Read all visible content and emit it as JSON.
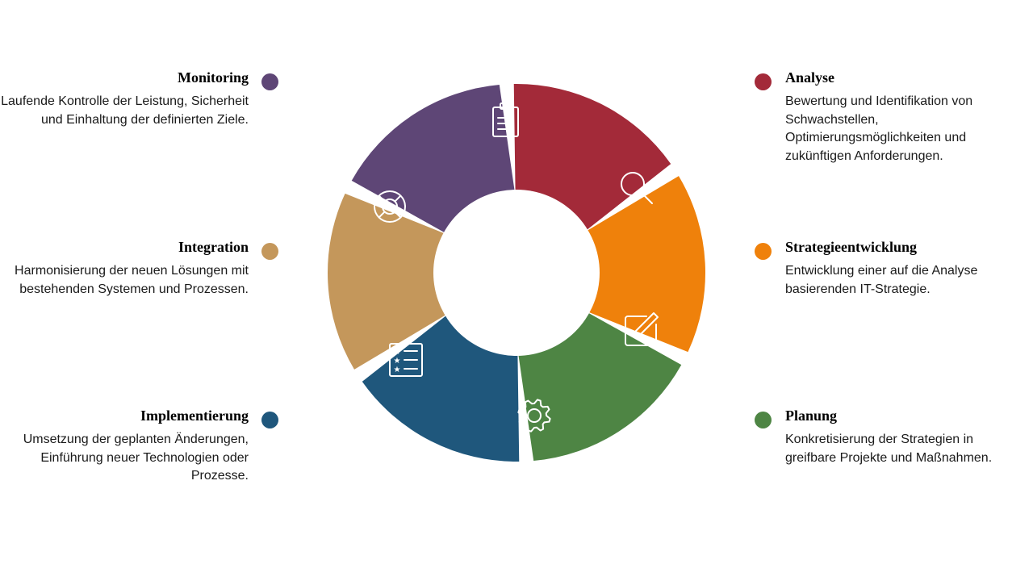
{
  "colors": {
    "analyse": "#A32A39",
    "strategie": "#EF810B",
    "planung": "#4E8544",
    "implementierung": "#1F577C",
    "integration": "#C4975B",
    "monitoring": "#5E4676"
  },
  "steps": {
    "monitoring": {
      "title": "Monitoring",
      "text": "Laufende Kontrolle der Leistung, Sicherheit und Einhaltung der definierten Ziele.",
      "icon": "lifebuoy-icon"
    },
    "integration": {
      "title": "Integration",
      "text": "Harmonisierung der neuen Lösungen mit bestehenden Systemen und Prozessen.",
      "icon": "checklist-icon"
    },
    "implementierung": {
      "title": "Implementierung",
      "text": "Umsetzung der geplanten Änderungen, Einführung neuer Technologien oder Prozesse.",
      "icon": "gear-icon"
    },
    "analyse": {
      "title": "Analyse",
      "text": "Bewertung und Identifikation von Schwachstellen, Optimierungsmöglichkeiten und zukünftigen Anforderungen.",
      "icon": "clipboard-icon"
    },
    "strategie": {
      "title": "Strategieentwicklung",
      "text": "Entwicklung einer auf die Analyse basierenden IT-Strategie.",
      "icon": "magnifier-icon"
    },
    "planung": {
      "title": "Planung",
      "text": "Konkretisierung der Strategien in greifbare Projekte und Maßnahmen.",
      "icon": "edit-icon"
    }
  }
}
